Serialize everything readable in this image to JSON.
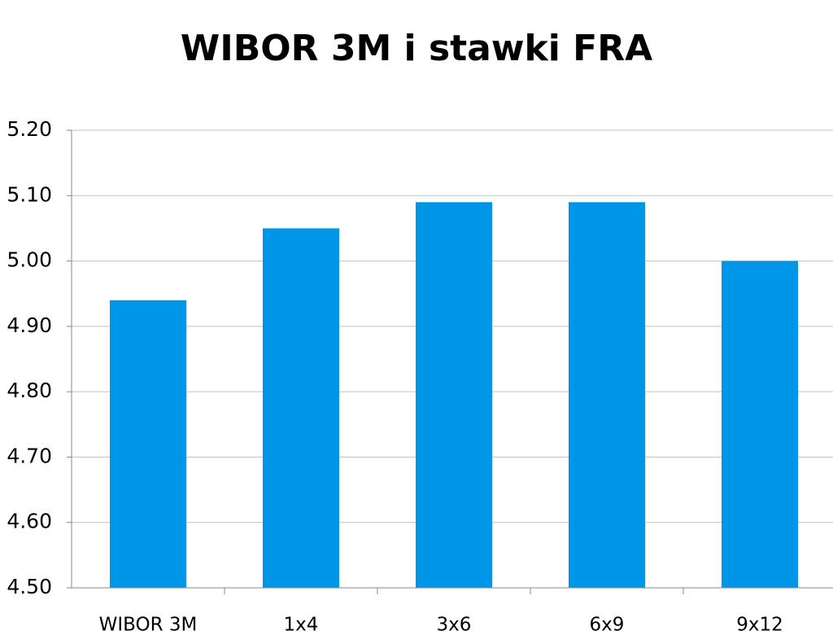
{
  "chart_data": {
    "type": "bar",
    "title": "WIBOR 3M i stawki FRA",
    "categories": [
      "WIBOR 3M",
      "1x4",
      "3x6",
      "6x9",
      "9x12"
    ],
    "values": [
      4.94,
      5.05,
      5.09,
      5.09,
      5.0
    ],
    "color": "#0096e8",
    "ylim": [
      4.5,
      5.2
    ],
    "yticks": [
      {
        "value": 4.5,
        "label": "4.50"
      },
      {
        "value": 4.6,
        "label": "4.60"
      },
      {
        "value": 4.7,
        "label": "4.70"
      },
      {
        "value": 4.8,
        "label": "4.80"
      },
      {
        "value": 4.9,
        "label": "4.90"
      },
      {
        "value": 5.0,
        "label": "5.00"
      },
      {
        "value": 5.1,
        "label": "5.10"
      },
      {
        "value": 5.2,
        "label": "5.20"
      }
    ],
    "grid": true
  }
}
